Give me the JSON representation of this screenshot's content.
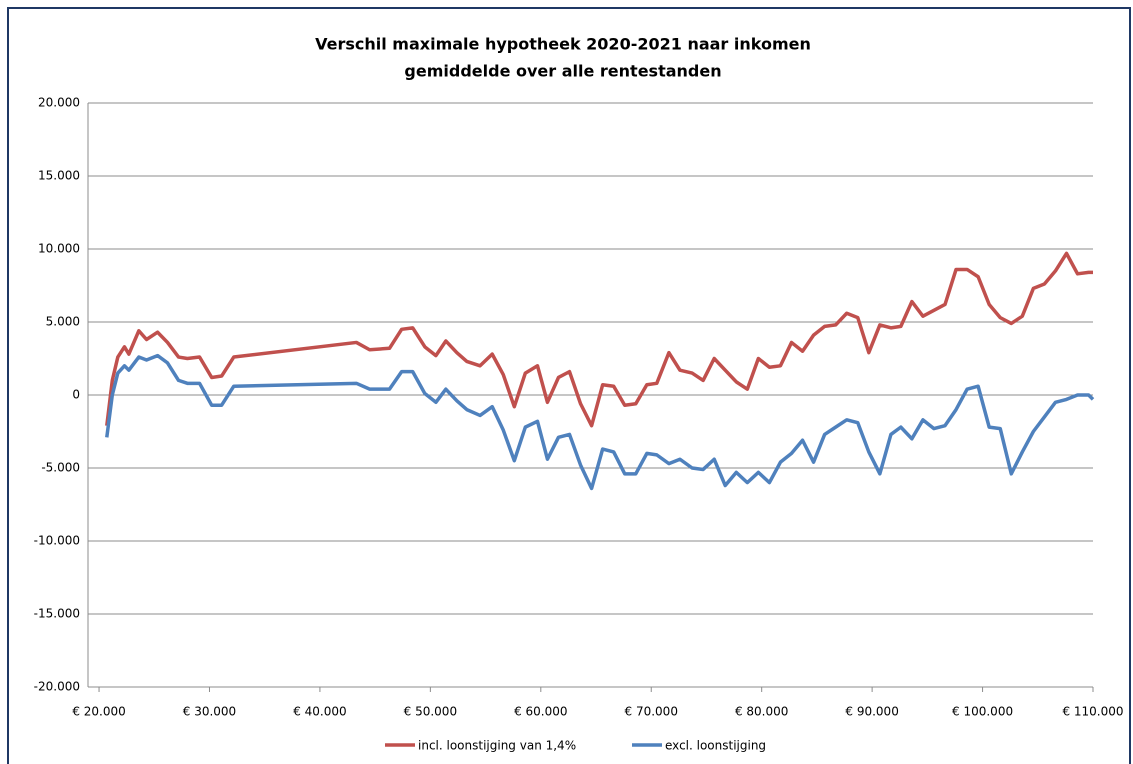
{
  "chart_data": {
    "type": "line",
    "title": "Verschil maximale hypotheek 2020-2021 naar inkomen",
    "subtitle": "gemiddelde over alle rentestanden",
    "x": [
      20700,
      21200,
      21700,
      22300,
      22700,
      23600,
      24300,
      25300,
      26200,
      27200,
      28000,
      29100,
      30200,
      31100,
      32200,
      43300,
      44500,
      46300,
      47400,
      48400,
      49500,
      50500,
      51400,
      52400,
      53300,
      54500,
      55600,
      56600,
      57600,
      58600,
      59700,
      60600,
      61600,
      62600,
      63600,
      64600,
      65600,
      66600,
      67600,
      68600,
      69600,
      70500,
      71600,
      72600,
      73700,
      74700,
      75700,
      76700,
      77700,
      78700,
      79700,
      80700,
      81700,
      82700,
      83700,
      84700,
      85700,
      86700,
      87700,
      88700,
      89700,
      90700,
      91700,
      92600,
      93600,
      94600,
      95600,
      96600,
      97600,
      98600,
      99600,
      100600,
      101600,
      102600,
      103600,
      104600,
      105600,
      106600,
      107600,
      108600,
      109600,
      110000
    ],
    "series": [
      {
        "name": "incl. loonstijging van 1,4%",
        "color": "#c0504d",
        "values": [
          -2100,
          1000,
          2600,
          3300,
          2800,
          4400,
          3800,
          4300,
          3600,
          2600,
          2500,
          2600,
          1200,
          1300,
          2600,
          3600,
          3100,
          3200,
          4500,
          4600,
          3300,
          2700,
          3700,
          2900,
          2300,
          2000,
          2800,
          1400,
          -800,
          1500,
          2000,
          -500,
          1200,
          1600,
          -600,
          -2100,
          700,
          600,
          -700,
          -600,
          700,
          800,
          2900,
          1700,
          1500,
          1000,
          2500,
          1700,
          900,
          400,
          2500,
          1900,
          2000,
          3600,
          3000,
          4100,
          4700,
          4800,
          5600,
          5300,
          2900,
          4800,
          4600,
          4700,
          6400,
          5400,
          5800,
          6200,
          8600,
          8600,
          8100,
          6200,
          5300,
          4900,
          5400,
          7300,
          7600,
          8500,
          9700,
          8300,
          8400,
          8400
        ]
      },
      {
        "name": "excl. loonstijging",
        "color": "#4f81bd",
        "values": [
          -2900,
          0,
          1500,
          2000,
          1700,
          2600,
          2400,
          2700,
          2200,
          1000,
          800,
          800,
          -700,
          -700,
          600,
          800,
          400,
          400,
          1600,
          1600,
          100,
          -500,
          400,
          -400,
          -1000,
          -1400,
          -800,
          -2400,
          -4500,
          -2200,
          -1800,
          -4400,
          -2900,
          -2700,
          -4800,
          -6400,
          -3700,
          -3900,
          -5400,
          -5400,
          -4000,
          -4100,
          -4700,
          -4400,
          -5000,
          -5100,
          -4400,
          -6200,
          -5300,
          -6000,
          -5300,
          -6000,
          -4600,
          -4000,
          -3100,
          -4600,
          -2700,
          -2200,
          -1700,
          -1900,
          -3900,
          -5400,
          -2700,
          -2200,
          -3000,
          -1700,
          -2300,
          -2100,
          -1000,
          400,
          600,
          -2200,
          -2300,
          -5400,
          -3900,
          -2500,
          -1500,
          -500,
          -300,
          0,
          0,
          -300
        ]
      }
    ],
    "xlim": [
      19000,
      110000
    ],
    "xticks": [
      {
        "value": 20000,
        "label": "€ 20.000"
      },
      {
        "value": 30000,
        "label": "€ 30.000"
      },
      {
        "value": 40000,
        "label": "€ 40.000"
      },
      {
        "value": 50000,
        "label": "€ 50.000"
      },
      {
        "value": 60000,
        "label": "€ 60.000"
      },
      {
        "value": 70000,
        "label": "€ 70.000"
      },
      {
        "value": 80000,
        "label": "€ 80.000"
      },
      {
        "value": 90000,
        "label": "€ 90.000"
      },
      {
        "value": 100000,
        "label": "€ 100.000"
      },
      {
        "value": 110000,
        "label": "€ 110.000"
      }
    ],
    "ylim": [
      -20000,
      20000
    ],
    "yticks": [
      {
        "value": -20000,
        "label": "-20.000"
      },
      {
        "value": -15000,
        "label": "-15.000"
      },
      {
        "value": -10000,
        "label": "-10.000"
      },
      {
        "value": -5000,
        "label": "-5.000"
      },
      0,
      {
        "value": 5000,
        "label": "5.000"
      },
      {
        "value": 10000,
        "label": "10.000"
      },
      {
        "value": 15000,
        "label": "15.000"
      },
      {
        "value": 20000,
        "label": "20.000"
      }
    ],
    "grid": true,
    "legend": "bottom"
  }
}
